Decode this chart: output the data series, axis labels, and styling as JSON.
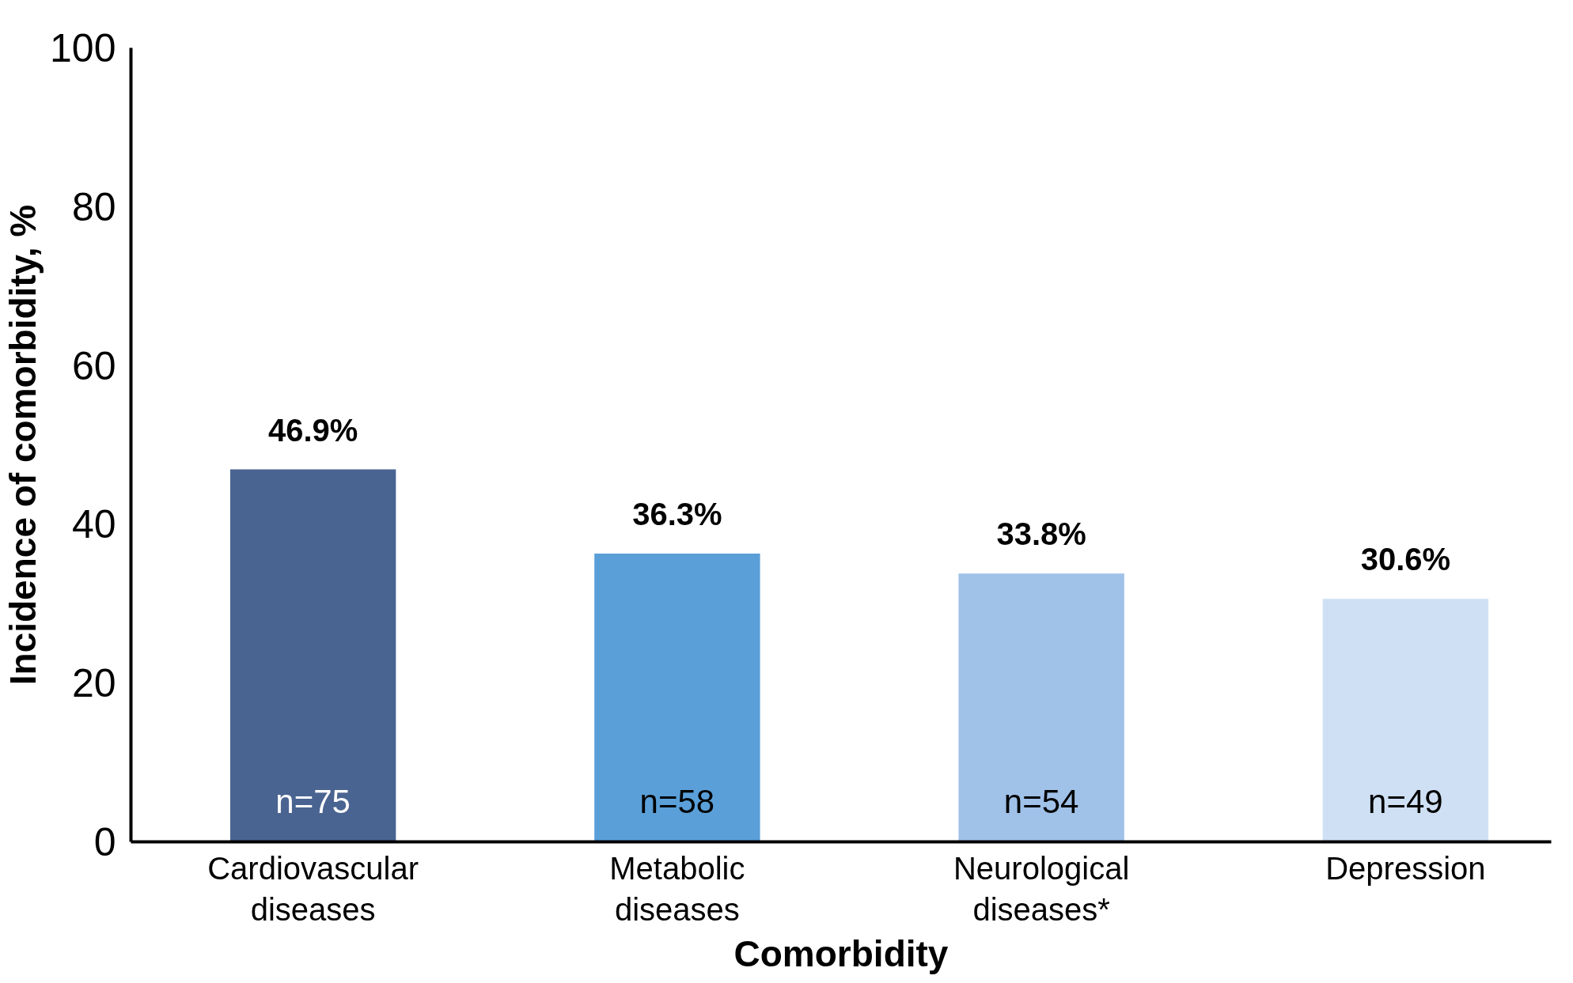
{
  "chart_data": {
    "type": "bar",
    "xlabel": "Comorbidity",
    "ylabel": "Incidence of comorbidity, %",
    "categories": [
      "Cardiovascular\ndiseases",
      "Metabolic\ndiseases",
      "Neurological\ndiseases*",
      "Depression"
    ],
    "values": [
      46.9,
      36.3,
      33.8,
      30.6
    ],
    "colors": [
      "#4a6491",
      "#5a9fd8",
      "#a0c1e8",
      "#cfe0f4"
    ],
    "value_labels": [
      "46.9%",
      "36.3%",
      "33.8%",
      "30.6%"
    ],
    "annotations": [
      {
        "text": "n=75",
        "x": "Cardiovascular\ndiseases",
        "y": 0
      },
      {
        "text": "n=58",
        "x": "Metabolic\ndiseases",
        "y": 0
      },
      {
        "text": "n=54",
        "x": "Neurological\ndiseases*",
        "y": 0
      },
      {
        "text": "n=49",
        "x": "Depression",
        "y": 0
      }
    ],
    "ylim": [
      0,
      100
    ],
    "yticks": [
      0,
      20,
      40,
      60,
      80,
      100
    ],
    "grid": false
  }
}
